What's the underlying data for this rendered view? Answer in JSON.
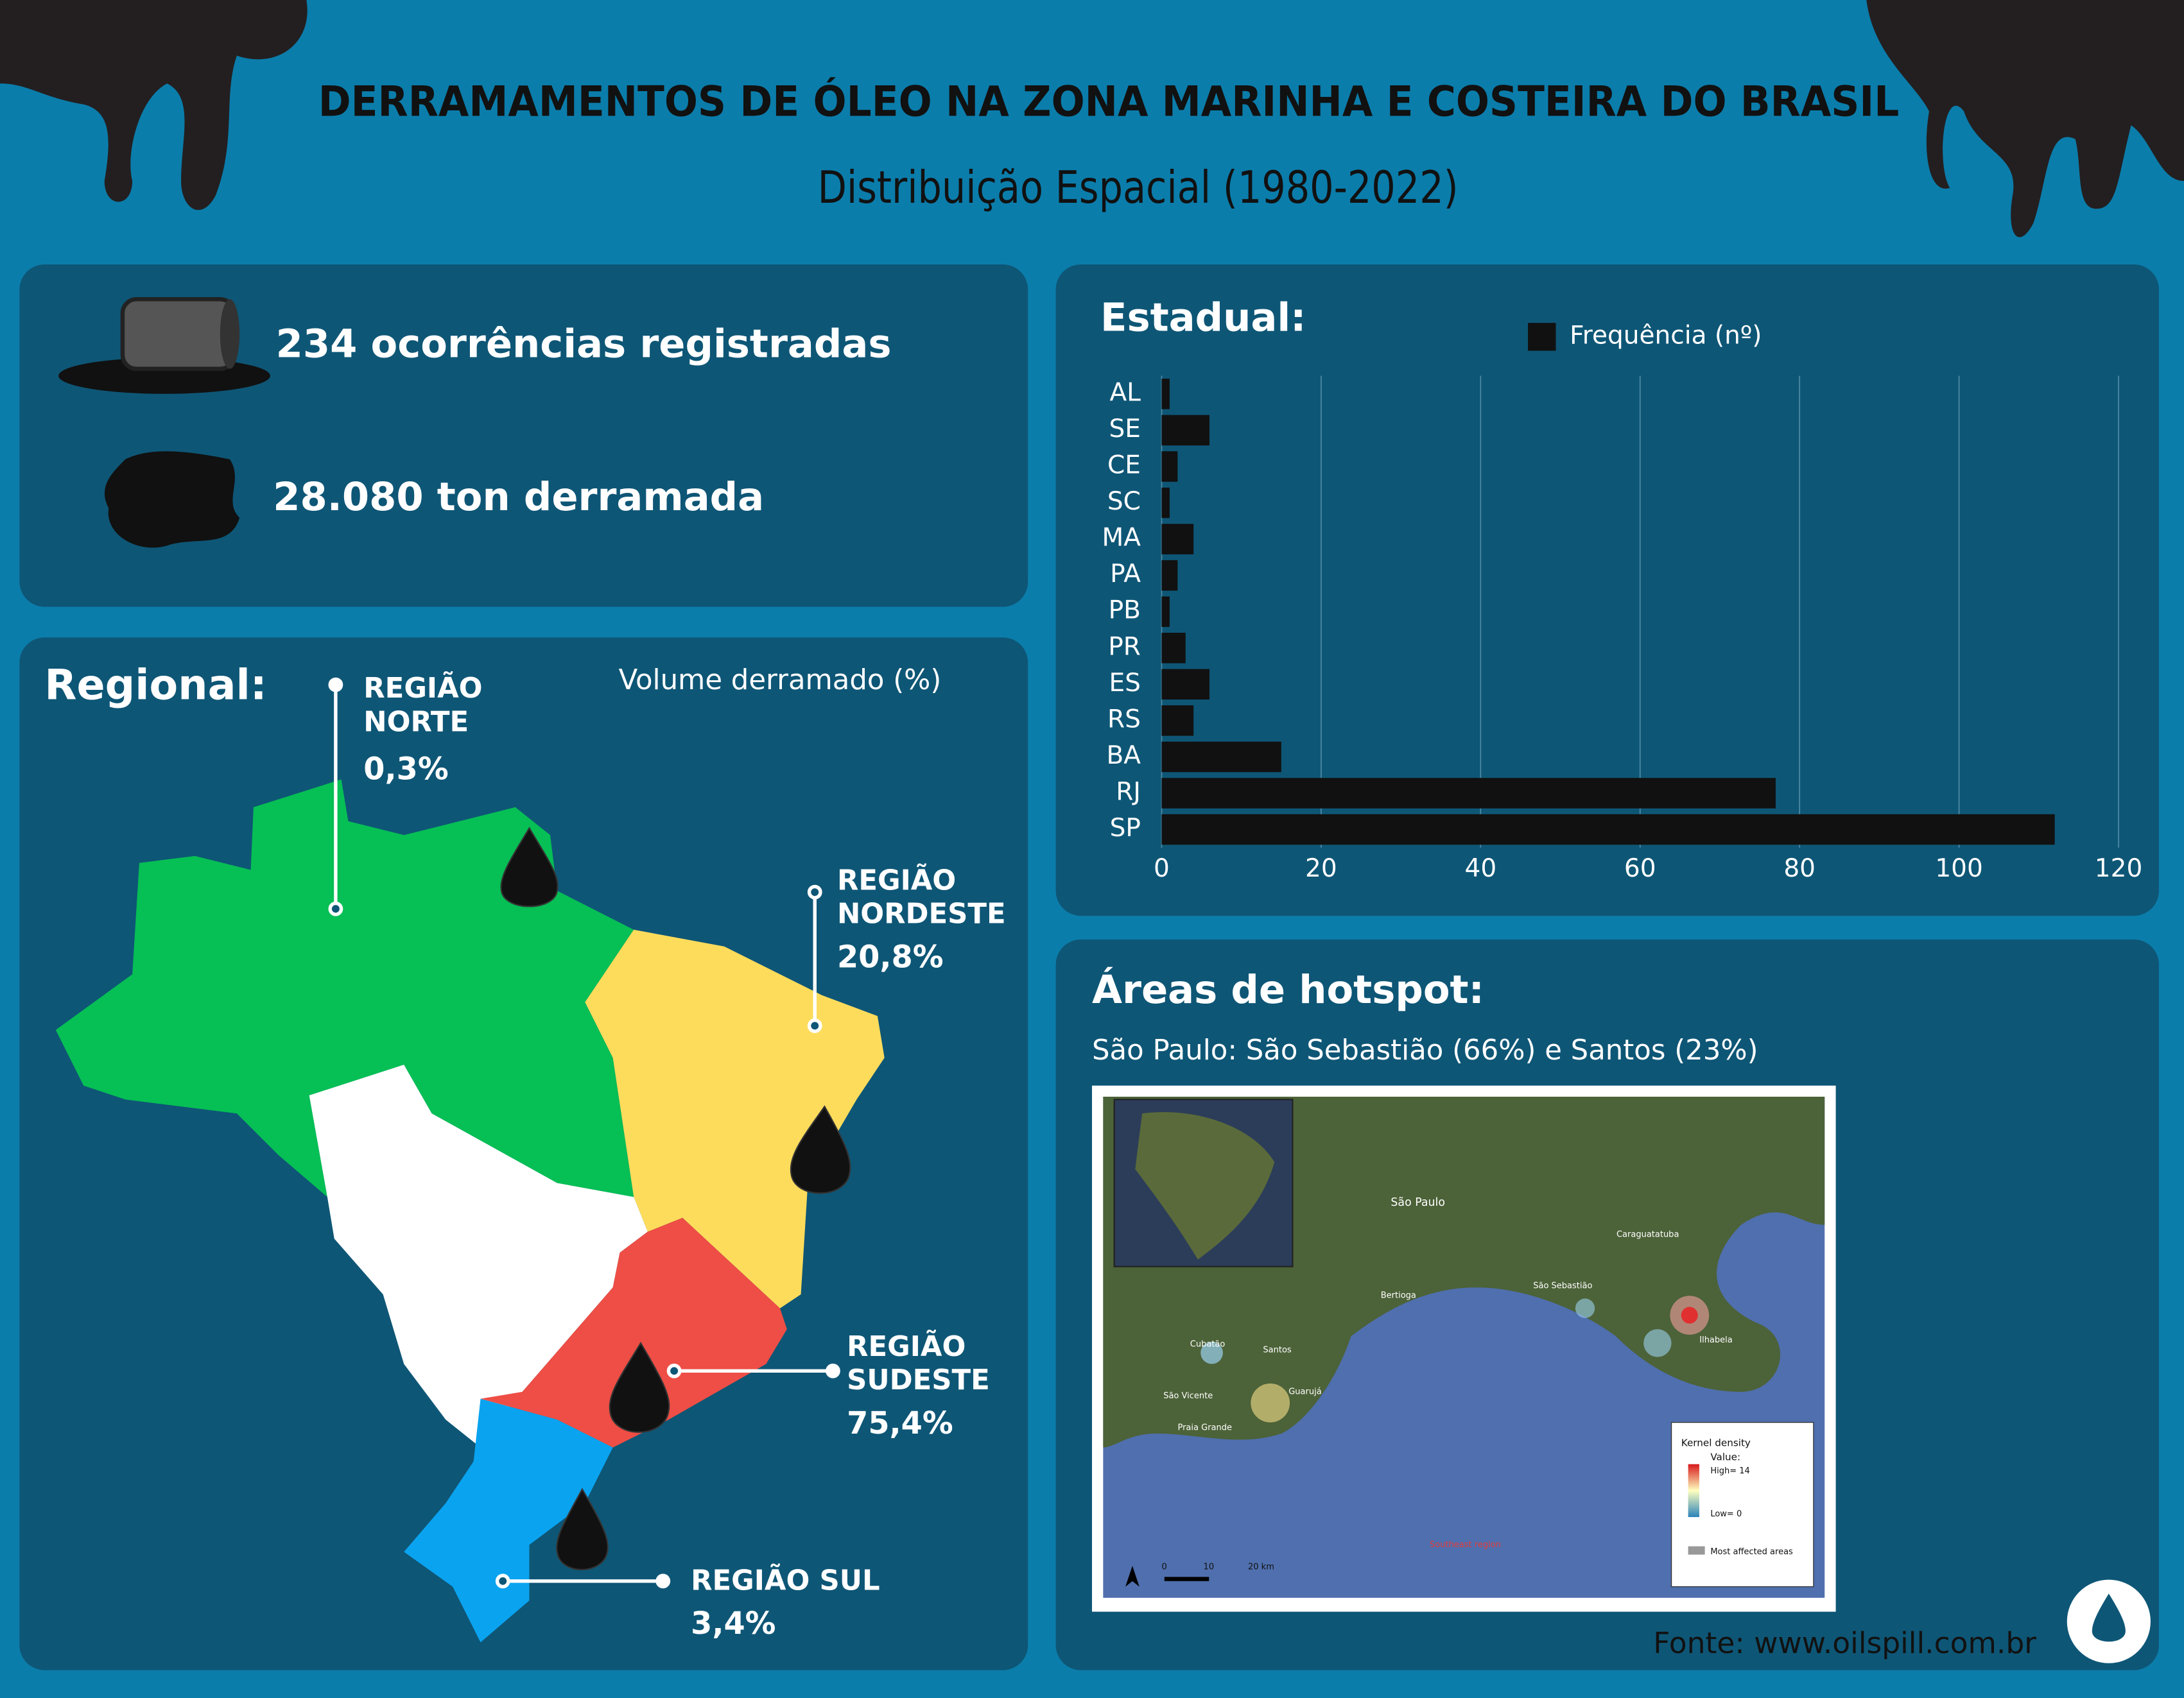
{
  "header": {
    "title": "DERRAMAMENTOS DE ÓLEO NA ZONA MARINHA  E COSTEIRA DO BRASIL",
    "subtitle": "Distribuição Espacial (1980-2022)"
  },
  "summary": {
    "occurrences": "234 ocorrências registradas",
    "volume": "28.080 ton derramada"
  },
  "regional": {
    "title": "Regional:",
    "subtitle": "Volume derramado (%)",
    "regions": [
      {
        "name": [
          "REGIÃO",
          "NORTE"
        ],
        "share": "0,3%"
      },
      {
        "name": [
          "REGIÃO",
          "NORDESTE"
        ],
        "share": "20,8%"
      },
      {
        "name": [
          "REGIÃO",
          "SUDESTE"
        ],
        "share": "75,4%"
      },
      {
        "name": [
          "REGIÃO SUL"
        ],
        "share": "3,4%"
      }
    ]
  },
  "chart_data": {
    "type": "bar",
    "orientation": "horizontal",
    "title": "Estadual:",
    "categories": [
      "AL",
      "SE",
      "CE",
      "SC",
      "MA",
      "PA",
      "PB",
      "PR",
      "ES",
      "RS",
      "BA",
      "RJ",
      "SP"
    ],
    "series": [
      {
        "name": "Frequência (nº)",
        "color": "#111111",
        "values": [
          1,
          6,
          2,
          1,
          4,
          2,
          1,
          3,
          6,
          4,
          15,
          77,
          112
        ]
      }
    ],
    "xlim": [
      0,
      120
    ],
    "xticks": [
      0,
      20,
      40,
      60,
      80,
      100,
      120
    ],
    "grid": true
  },
  "hotspot": {
    "title": "Áreas de hotspot:",
    "subtitle": "São Paulo: São Sebastião (66%) e Santos (23%)",
    "map_labels": [
      "São Paulo",
      "Caraguatatuba",
      "São Sebastião",
      "Bertioga",
      "Ilhabela",
      "Santos",
      "Guarujá",
      "Cubatão",
      "São Vicente",
      "Praia Grande",
      "Southeast region"
    ],
    "legend": {
      "title": "Kernel density",
      "value": "Value:",
      "high": "High= 14",
      "low": "Low= 0",
      "area": "Most affected areas"
    },
    "scale": [
      "0",
      "10",
      "20 km"
    ]
  },
  "source": "Fonte: www.oilspill.com.br"
}
